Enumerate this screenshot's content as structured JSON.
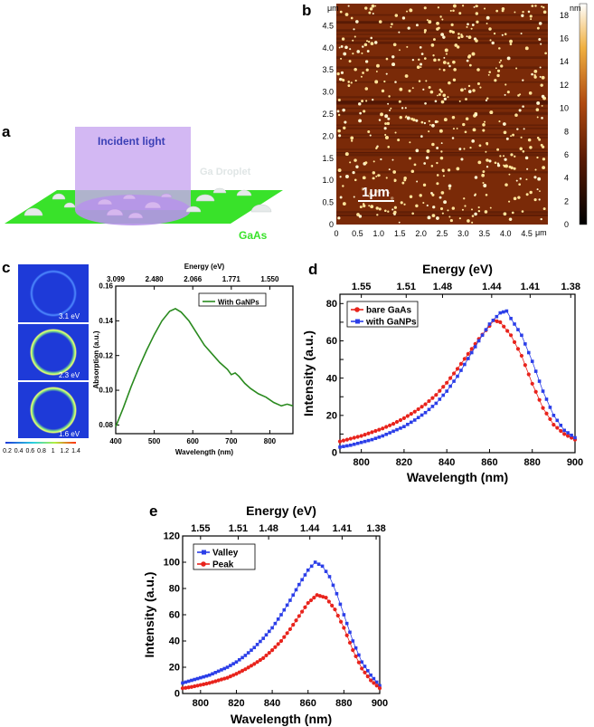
{
  "panels": {
    "a": {
      "letter": "a",
      "incident_label": "Incident light",
      "droplet_label": "Ga Droplet",
      "substrate_label": "GaAs",
      "colors": {
        "substrate": "#39e22a",
        "light": "#c9a8f0",
        "light_text": "#3a3fb5",
        "droplet": "#e8ecec"
      }
    },
    "b": {
      "letter": "b",
      "axis_unit_y": "μm",
      "axis_unit_x": "μm",
      "colorbar_unit": "nm",
      "scale_bar": "1μm",
      "colors": {
        "bg": "#7a2a08",
        "dot": "#ffe9a0"
      }
    },
    "c": {
      "letter": "c",
      "fields": [
        {
          "label": "3.1 eV"
        },
        {
          "label": "2.3 eV"
        },
        {
          "label": "1.6 eV"
        }
      ],
      "field_scale_ticks": [
        "0.2",
        "0.4",
        "0.6",
        "0.8",
        "1",
        "1.2",
        "1.4"
      ]
    },
    "d": {
      "letter": "d"
    },
    "e": {
      "letter": "e"
    }
  },
  "chart_data": [
    {
      "id": "b-colorbar",
      "type": "heatmap",
      "title": "",
      "xlabel": "μm",
      "ylabel": "μm",
      "xlim": [
        0,
        5
      ],
      "ylim": [
        0,
        5
      ],
      "x_ticks": [
        "0",
        "0.5",
        "1.0",
        "1.5",
        "2.0",
        "2.5",
        "3.0",
        "3.5",
        "4.0",
        "4.5"
      ],
      "y_ticks": [
        "0",
        "0.5",
        "1.0",
        "1.5",
        "2.0",
        "2.5",
        "3.0",
        "3.5",
        "4.0",
        "4.5"
      ],
      "colorbar_label": "nm",
      "colorbar_ticks": [
        "0",
        "2",
        "4",
        "6",
        "8",
        "10",
        "12",
        "14",
        "16",
        "18"
      ],
      "colorbar_range": [
        0,
        19
      ]
    },
    {
      "id": "c-absorption",
      "type": "line",
      "title": "",
      "xlabel": "Wavelength (nm)",
      "ylabel": "Absorption (a.u.)",
      "top_xlabel": "Energy (eV)",
      "xlim": [
        400,
        860
      ],
      "ylim": [
        0.075,
        0.16
      ],
      "x_ticks": [
        400,
        500,
        600,
        700,
        800
      ],
      "y_ticks": [
        0.08,
        0.1,
        0.12,
        0.14,
        0.16
      ],
      "y_tick_labels": [
        "0.08",
        "0.10",
        "0.12",
        "0.14",
        "0.16"
      ],
      "top_ticks": [
        {
          "x": 400,
          "label": "3.099"
        },
        {
          "x": 500,
          "label": "2.480"
        },
        {
          "x": 600,
          "label": "2.066"
        },
        {
          "x": 700,
          "label": "1.771"
        },
        {
          "x": 800,
          "label": "1.550"
        }
      ],
      "legend": "top-right",
      "series": [
        {
          "name": "With GaNPs",
          "color": "#2a8a1f",
          "x": [
            400,
            420,
            440,
            460,
            480,
            500,
            520,
            540,
            555,
            570,
            590,
            610,
            630,
            650,
            670,
            690,
            700,
            710,
            720,
            735,
            750,
            770,
            790,
            810,
            830,
            845,
            860
          ],
          "y": [
            0.079,
            0.09,
            0.102,
            0.113,
            0.123,
            0.132,
            0.14,
            0.1455,
            0.147,
            0.145,
            0.14,
            0.133,
            0.126,
            0.121,
            0.116,
            0.112,
            0.109,
            0.11,
            0.108,
            0.104,
            0.101,
            0.098,
            0.096,
            0.093,
            0.091,
            0.092,
            0.091
          ]
        }
      ]
    },
    {
      "id": "d-pl",
      "type": "scatter",
      "title": "",
      "xlabel": "Wavelength (nm)",
      "ylabel": "Intensity (a.u.)",
      "top_xlabel": "Energy (eV)",
      "xlim": [
        790,
        900
      ],
      "ylim": [
        0,
        85
      ],
      "x_ticks": [
        800,
        820,
        840,
        860,
        880,
        900
      ],
      "y_ticks": [
        0,
        10,
        20,
        30,
        40,
        50,
        60,
        70,
        80
      ],
      "y_tick_labels": [
        "0",
        "",
        "20",
        "",
        "40",
        "",
        "60",
        "",
        "80"
      ],
      "top_ticks": [
        {
          "x": 800,
          "label": "1.55"
        },
        {
          "x": 821,
          "label": "1.51"
        },
        {
          "x": 838,
          "label": "1.48"
        },
        {
          "x": 861,
          "label": "1.44"
        },
        {
          "x": 879,
          "label": "1.41"
        },
        {
          "x": 898,
          "label": "1.38"
        }
      ],
      "legend": "top-left",
      "series": [
        {
          "name": "bare GaAs",
          "color": "#e8231c",
          "marker": "circle",
          "x": [
            790,
            795,
            800,
            805,
            810,
            815,
            820,
            825,
            830,
            835,
            840,
            845,
            850,
            855,
            860,
            862,
            865,
            870,
            875,
            880,
            885,
            890,
            895,
            900
          ],
          "y": [
            6,
            7.5,
            9,
            11,
            13,
            15.5,
            18.5,
            22,
            26,
            31,
            37.5,
            45,
            53,
            61,
            68,
            71,
            70,
            63,
            52,
            37,
            24,
            15,
            10,
            7
          ]
        },
        {
          "name": "with GaNPs",
          "color": "#2b3ee8",
          "marker": "square",
          "x": [
            790,
            795,
            800,
            805,
            810,
            815,
            820,
            825,
            830,
            835,
            840,
            845,
            850,
            855,
            860,
            865,
            868,
            870,
            875,
            880,
            885,
            890,
            895,
            900
          ],
          "y": [
            3,
            4,
            5.5,
            7,
            9,
            11.5,
            14,
            17.5,
            21.5,
            26.5,
            33,
            41,
            50.5,
            60,
            69,
            75,
            76,
            72,
            63,
            49,
            33,
            20,
            12,
            8
          ]
        }
      ]
    },
    {
      "id": "e-pl",
      "type": "scatter",
      "title": "",
      "xlabel": "Wavelength (nm)",
      "ylabel": "Intensity (a.u.)",
      "top_xlabel": "Energy (eV)",
      "xlim": [
        790,
        900
      ],
      "ylim": [
        0,
        120
      ],
      "x_ticks": [
        800,
        820,
        840,
        860,
        880,
        900
      ],
      "y_ticks": [
        0,
        20,
        40,
        60,
        80,
        100,
        120
      ],
      "y_tick_labels": [
        "0",
        "20",
        "40",
        "60",
        "80",
        "100",
        "120"
      ],
      "top_ticks": [
        {
          "x": 800,
          "label": "1.55"
        },
        {
          "x": 821,
          "label": "1.51"
        },
        {
          "x": 838,
          "label": "1.48"
        },
        {
          "x": 861,
          "label": "1.44"
        },
        {
          "x": 879,
          "label": "1.41"
        },
        {
          "x": 898,
          "label": "1.38"
        }
      ],
      "legend": "top-left",
      "series": [
        {
          "name": "Valley",
          "color": "#2b3ee8",
          "marker": "square",
          "x": [
            790,
            795,
            800,
            805,
            810,
            815,
            820,
            825,
            830,
            835,
            840,
            845,
            850,
            855,
            860,
            864,
            868,
            872,
            876,
            880,
            885,
            890,
            895,
            900
          ],
          "y": [
            8,
            10,
            12,
            14,
            17,
            20,
            24,
            29,
            35,
            42,
            50,
            60,
            71,
            83,
            94,
            100,
            97,
            89,
            76,
            60,
            40,
            24,
            14,
            6
          ]
        },
        {
          "name": "Peak",
          "color": "#e8231c",
          "marker": "circle",
          "x": [
            790,
            795,
            800,
            805,
            810,
            815,
            820,
            825,
            830,
            835,
            840,
            845,
            850,
            855,
            860,
            865,
            870,
            875,
            880,
            885,
            890,
            895,
            900
          ],
          "y": [
            4,
            5,
            6.5,
            8,
            10,
            12,
            15,
            18.5,
            22.5,
            27,
            33,
            40,
            49,
            59,
            69,
            75,
            73,
            64,
            50,
            33,
            19,
            10,
            4
          ]
        }
      ]
    }
  ]
}
